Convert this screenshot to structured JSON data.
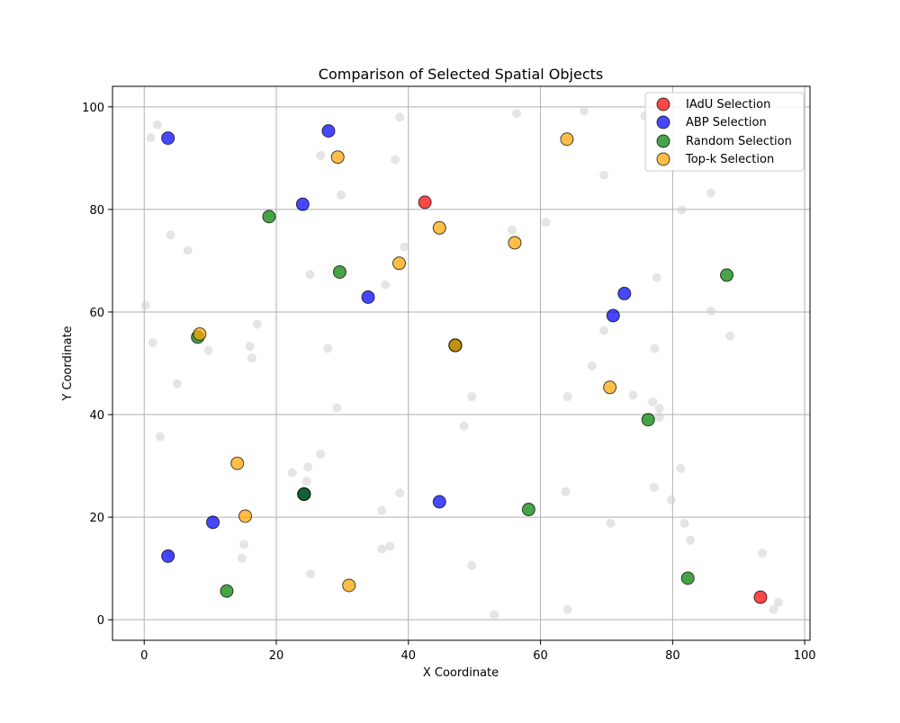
{
  "chart_data": {
    "type": "scatter",
    "title": "Comparison of Selected Spatial Objects",
    "xlabel": "X Coordinate",
    "ylabel": "Y Coordinate",
    "xlim": [
      -4.8,
      100.8
    ],
    "ylim": [
      -4,
      104
    ],
    "xticks": [
      0,
      20,
      40,
      60,
      80,
      100
    ],
    "yticks": [
      0,
      20,
      40,
      60,
      80,
      100
    ],
    "grid": true,
    "legend_position": "top-right",
    "background_points": {
      "color": "#cccccc",
      "points": [
        [
          2,
          96.5
        ],
        [
          1,
          94
        ],
        [
          4,
          75
        ],
        [
          6.6,
          72
        ],
        [
          0.2,
          61.3
        ],
        [
          1.3,
          54
        ],
        [
          5,
          46
        ],
        [
          9.7,
          52.5
        ],
        [
          2.4,
          35.7
        ],
        [
          4,
          13
        ],
        [
          14.8,
          12
        ],
        [
          15.1,
          14.7
        ],
        [
          16,
          53.3
        ],
        [
          16.3,
          51
        ],
        [
          17.1,
          57.6
        ],
        [
          22.4,
          28.7
        ],
        [
          24.8,
          29.8
        ],
        [
          24.6,
          27
        ],
        [
          25.1,
          67.3
        ],
        [
          25.2,
          8.9
        ],
        [
          26.7,
          90.5
        ],
        [
          26.7,
          32.3
        ],
        [
          27.8,
          52.9
        ],
        [
          29.2,
          41.3
        ],
        [
          29.8,
          82.8
        ],
        [
          36,
          21.3
        ],
        [
          36,
          13.8
        ],
        [
          36.5,
          65.3
        ],
        [
          37.2,
          14.3
        ],
        [
          38,
          89.7
        ],
        [
          38.7,
          98
        ],
        [
          38.7,
          24.7
        ],
        [
          39.4,
          72.7
        ],
        [
          48.4,
          37.8
        ],
        [
          49.6,
          43.5
        ],
        [
          49.6,
          10.6
        ],
        [
          53,
          1
        ],
        [
          55.7,
          76
        ],
        [
          56.4,
          98.7
        ],
        [
          60.8,
          77.5
        ],
        [
          63.8,
          25
        ],
        [
          64.1,
          43.5
        ],
        [
          64.1,
          2
        ],
        [
          66.6,
          99.2
        ],
        [
          67.8,
          49.5
        ],
        [
          69.6,
          86.7
        ],
        [
          69.6,
          56.4
        ],
        [
          70.6,
          18.8
        ],
        [
          74,
          43.8
        ],
        [
          75.8,
          98.2
        ],
        [
          77,
          42.5
        ],
        [
          77.2,
          25.8
        ],
        [
          77.3,
          52.9
        ],
        [
          77.6,
          66.7
        ],
        [
          78,
          41.2
        ],
        [
          78,
          39.5
        ],
        [
          79.8,
          23.4
        ],
        [
          81.2,
          29.5
        ],
        [
          81.4,
          79.9
        ],
        [
          81.8,
          18.8
        ],
        [
          82.7,
          15.5
        ],
        [
          85.8,
          83.2
        ],
        [
          85.8,
          60.2
        ],
        [
          88.7,
          55.3
        ],
        [
          93.6,
          13
        ],
        [
          95.3,
          2
        ],
        [
          96,
          3.4
        ]
      ]
    },
    "series": [
      {
        "name": "IAdU Selection",
        "color": "#ff0000",
        "points": [
          [
            42.5,
            81.4
          ],
          [
            93.3,
            4.4
          ],
          [
            47.1,
            53.5
          ],
          [
            24.2,
            24.5
          ]
        ]
      },
      {
        "name": "ABP Selection",
        "color": "#0000ff",
        "points": [
          [
            3.6,
            93.9
          ],
          [
            27.9,
            95.3
          ],
          [
            24,
            81
          ],
          [
            33.9,
            62.9
          ],
          [
            72.7,
            63.6
          ],
          [
            71,
            59.3
          ],
          [
            10.4,
            19
          ],
          [
            3.6,
            12.4
          ],
          [
            44.7,
            23
          ],
          [
            47.1,
            53.5
          ],
          [
            24.2,
            24.5
          ]
        ]
      },
      {
        "name": "Random Selection",
        "color": "#008000",
        "points": [
          [
            18.9,
            78.6
          ],
          [
            29.6,
            67.8
          ],
          [
            8.1,
            55.1
          ],
          [
            88.2,
            67.2
          ],
          [
            76.3,
            39
          ],
          [
            58.2,
            21.5
          ],
          [
            12.5,
            5.6
          ],
          [
            82.3,
            8.1
          ],
          [
            47.1,
            53.5
          ],
          [
            24.2,
            24.5
          ]
        ]
      },
      {
        "name": "Top-k Selection",
        "color": "#ffa500",
        "points": [
          [
            29.3,
            90.2
          ],
          [
            44.7,
            76.4
          ],
          [
            38.6,
            69.5
          ],
          [
            56.1,
            73.5
          ],
          [
            64,
            93.7
          ],
          [
            8.4,
            55.7
          ],
          [
            70.5,
            45.3
          ],
          [
            14.1,
            30.5
          ],
          [
            15.3,
            20.2
          ],
          [
            31,
            6.7
          ],
          [
            47.1,
            53.5
          ]
        ]
      }
    ]
  }
}
